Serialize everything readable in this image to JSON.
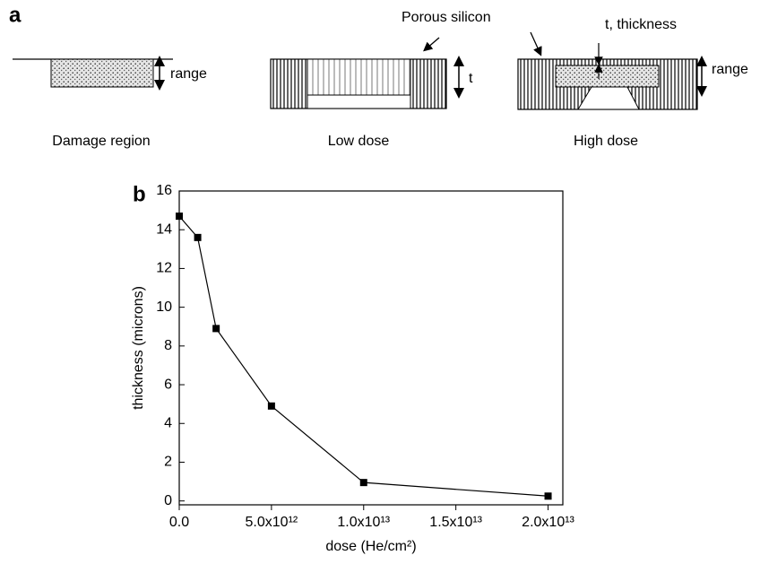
{
  "diagram": {
    "panel_label": "a",
    "damage": {
      "range_label": "range",
      "caption": "Damage region"
    },
    "low_dose": {
      "t_label": "t",
      "caption": "Low dose"
    },
    "high_dose": {
      "porous_label": "Porous silicon",
      "thickness_label": "t, thickness",
      "range_label": "range",
      "caption": "High dose"
    }
  },
  "chart_data": {
    "type": "line",
    "panel_label": "b",
    "xlabel": "dose (He/cm²)",
    "ylabel": "thickness (microns)",
    "x": [
      0,
      1000000000000,
      2000000000000,
      5000000000000,
      10000000000000,
      20000000000000
    ],
    "series": [
      {
        "color": "#000000",
        "values": [
          14.7,
          13.6,
          8.9,
          4.9,
          0.95,
          0.25
        ]
      }
    ],
    "xlim": [
      0,
      20800000000000
    ],
    "ylim": [
      -0.2,
      16
    ],
    "xticks": [
      {
        "value": 0,
        "label": "0.0"
      },
      {
        "value": 5000000000000,
        "label": "5.0x10¹²"
      },
      {
        "value": 10000000000000,
        "label": "1.0x10¹³"
      },
      {
        "value": 15000000000000,
        "label": "1.5x10¹³"
      },
      {
        "value": 20000000000000,
        "label": "2.0x10¹³"
      }
    ],
    "yticks": [
      0,
      2,
      4,
      6,
      8,
      10,
      12,
      14,
      16
    ]
  }
}
